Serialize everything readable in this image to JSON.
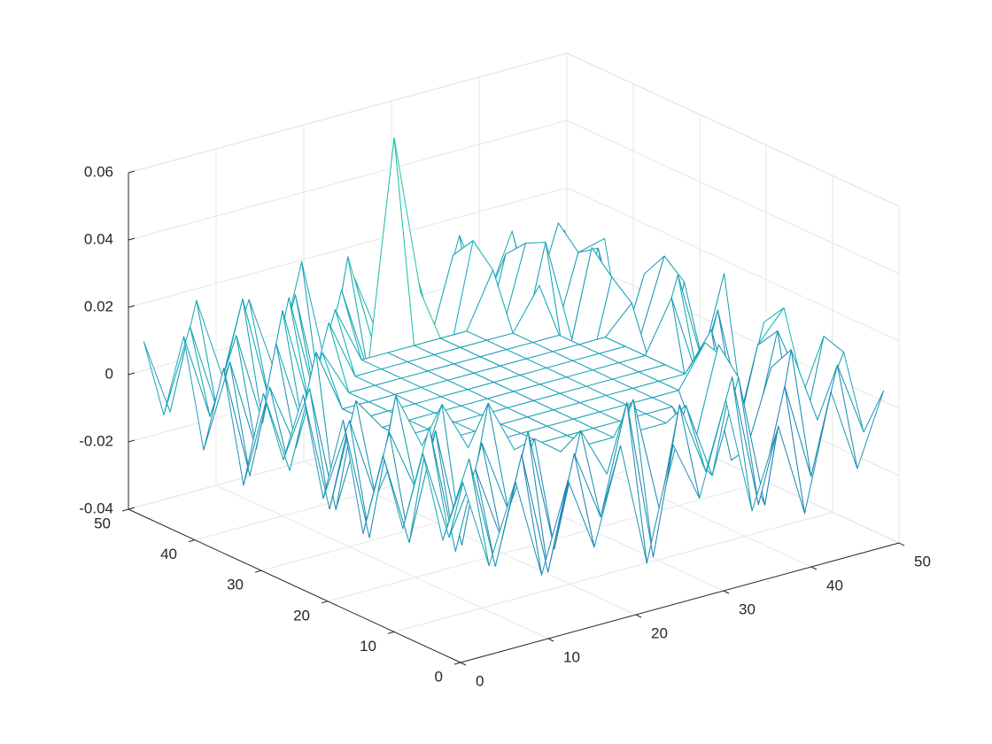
{
  "chart_data": {
    "type": "mesh",
    "x": [
      1,
      4,
      7,
      10,
      13,
      16,
      19,
      22,
      25,
      28,
      31,
      34,
      37,
      40,
      43,
      46,
      49
    ],
    "y": [
      1,
      4,
      7,
      10,
      13,
      16,
      19,
      22,
      25,
      28,
      31,
      34,
      37,
      40,
      43,
      46,
      49
    ],
    "z": [
      [
        0.012,
        -0.015,
        0.008,
        -0.022,
        0.004,
        -0.018,
        0.01,
        -0.027,
        0.006,
        -0.012,
        0.015,
        -0.02,
        0.003,
        -0.025,
        0.009,
        -0.016,
        0.005
      ],
      [
        -0.008,
        0.014,
        -0.02,
        0.011,
        -0.026,
        0.007,
        -0.014,
        0.018,
        -0.03,
        0.013,
        -0.009,
        0.017,
        -0.023,
        0.01,
        -0.019,
        0.012,
        -0.01
      ],
      [
        0.015,
        -0.012,
        0.006,
        -0.017,
        0.013,
        -0.024,
        0.009,
        -0.006,
        0.014,
        -0.021,
        0.008,
        -0.015,
        0.012,
        -0.028,
        0.016,
        -0.007,
        0.011
      ],
      [
        -0.01,
        0.018,
        -0.021,
        0.009,
        -0.013,
        0.006,
        0,
        0,
        0,
        0,
        0,
        -0.011,
        0.019,
        -0.016,
        0.008,
        -0.022,
        0.013
      ],
      [
        0.009,
        -0.019,
        0.012,
        -0.024,
        0.016,
        0,
        0,
        0,
        0,
        0,
        0,
        0,
        -0.014,
        0.01,
        -0.018,
        0.014,
        -0.006
      ],
      [
        -0.017,
        0.011,
        -0.008,
        0.015,
        0,
        0,
        0,
        0,
        0,
        0,
        0,
        0,
        0,
        0.012,
        -0.025,
        0.007,
        0.016
      ],
      [
        0.014,
        -0.023,
        0.017,
        0,
        0,
        0,
        0,
        0,
        0,
        0,
        0,
        0,
        0,
        0,
        0.011,
        -0.02,
        0.009
      ],
      [
        -0.012,
        0.009,
        -0.016,
        0,
        0,
        0,
        0,
        0,
        0,
        0,
        0,
        0,
        0,
        0,
        -0.017,
        0.012,
        -0.024
      ],
      [
        0.016,
        -0.02,
        0.01,
        0,
        0,
        0,
        0,
        0,
        0,
        0,
        0,
        0,
        0,
        0,
        0.015,
        -0.011,
        0.018
      ],
      [
        -0.006,
        0.013,
        -0.025,
        0,
        0,
        0,
        0,
        0,
        0,
        0,
        0,
        0,
        0,
        0,
        -0.009,
        0.017,
        -0.013
      ],
      [
        0.011,
        -0.014,
        0.019,
        0,
        0,
        0,
        0,
        0,
        0,
        0,
        0,
        0,
        0,
        0,
        0.008,
        -0.026,
        0.01
      ],
      [
        -0.019,
        0.008,
        -0.012,
        0.014,
        0,
        0,
        0,
        0,
        0,
        0,
        0,
        0,
        0,
        -0.018,
        0.013,
        -0.009,
        0.015
      ],
      [
        0.013,
        -0.021,
        0.016,
        -0.01,
        0.018,
        0,
        0,
        0,
        0,
        0,
        0,
        0,
        0.012,
        -0.015,
        0.019,
        -0.017,
        0.007
      ],
      [
        -0.014,
        0.01,
        -0.018,
        0.021,
        -0.009,
        0.017,
        0,
        0,
        0,
        0,
        0,
        0.016,
        -0.013,
        0.02,
        -0.011,
        0.014,
        -0.02
      ],
      [
        0.017,
        -0.009,
        0.013,
        -0.015,
        0.02,
        -0.012,
        0.018,
        -0.008,
        0.059,
        0.011,
        -0.014,
        0.022,
        -0.01,
        0.017,
        -0.016,
        0.01,
        0.012
      ],
      [
        -0.009,
        0.015,
        -0.011,
        0.019,
        -0.013,
        0.016,
        -0.02,
        0.023,
        -0.006,
        0.018,
        -0.012,
        0.015,
        -0.019,
        0.011,
        -0.008,
        0.016,
        -0.014
      ],
      [
        0.01,
        -0.013,
        0.018,
        -0.007,
        0.014,
        -0.01,
        0.021,
        -0.015,
        0.012,
        -0.009,
        0.019,
        -0.011,
        0.016,
        -0.006,
        0.013,
        -0.018,
        0.009
      ]
    ],
    "xlim": [
      0,
      50
    ],
    "ylim": [
      0,
      50
    ],
    "zlim": [
      -0.04,
      0.06
    ],
    "xticks": [
      0,
      10,
      20,
      30,
      40,
      50
    ],
    "yticks": [
      0,
      10,
      20,
      30,
      40,
      50
    ],
    "zticks": [
      -0.04,
      -0.02,
      0,
      0.02,
      0.04,
      0.06
    ],
    "grid": true,
    "colormap": [
      "#3e26a8",
      "#12beb9",
      "#f9fb15"
    ]
  }
}
